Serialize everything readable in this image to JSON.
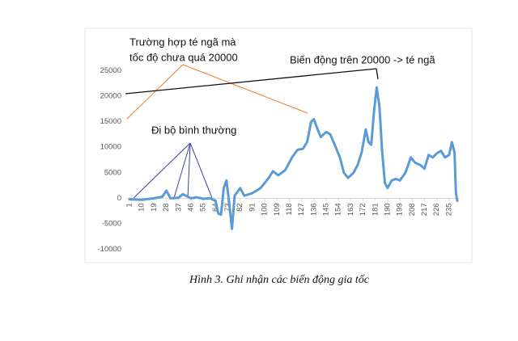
{
  "chart_data": {
    "type": "line",
    "annotations": [
      "Trường hợp té ngã mà",
      "tốc độ chưa quá 20000",
      "Biến động trên 20000 -> té ngã",
      "Đi bộ bình thường"
    ],
    "caption": "Hình 3. Ghi nhận các biến động gia tốc",
    "color": "#5b9bd5",
    "x": [
      1,
      10,
      19,
      25,
      28,
      31,
      37,
      40,
      46,
      50,
      55,
      60,
      64,
      66,
      68,
      70,
      72,
      74,
      76,
      78,
      82,
      85,
      91,
      97,
      103,
      106,
      110,
      115,
      120,
      124,
      128,
      131,
      134,
      136,
      138,
      141,
      145,
      148,
      152,
      155,
      158,
      161,
      165,
      168,
      171,
      174,
      176,
      178,
      180,
      182,
      184,
      186,
      188,
      190,
      193,
      196,
      199,
      203,
      207,
      210,
      214,
      217,
      220,
      223,
      226,
      229,
      232,
      235,
      237,
      239,
      240,
      241
    ],
    "values": [
      -200,
      -300,
      0,
      300,
      1500,
      0,
      100,
      800,
      0,
      200,
      -100,
      0,
      -500,
      -3000,
      -3200,
      2000,
      3500,
      -1000,
      -6000,
      500,
      2000,
      500,
      1000,
      2000,
      4000,
      5300,
      4500,
      5500,
      8000,
      9500,
      9700,
      11000,
      15000,
      15500,
      14000,
      12000,
      13000,
      12500,
      10000,
      8000,
      5000,
      4000,
      5000,
      6500,
      9000,
      13500,
      11000,
      10500,
      17000,
      21700,
      18000,
      9000,
      3000,
      2000,
      3500,
      3800,
      3500,
      5000,
      8000,
      7000,
      6500,
      5800,
      8500,
      8000,
      8800,
      9300,
      8000,
      8500,
      11000,
      9000,
      1000,
      -500
    ],
    "xlim": [
      1,
      241
    ],
    "xticks": [
      1,
      10,
      19,
      28,
      37,
      46,
      55,
      64,
      73,
      82,
      91,
      100,
      109,
      118,
      127,
      136,
      145,
      154,
      163,
      172,
      181,
      190,
      199,
      208,
      217,
      226,
      235
    ],
    "ylim": [
      -10000,
      25000
    ],
    "yticks": [
      -10000,
      -5000,
      0,
      5000,
      10000,
      15000,
      20000,
      25000
    ]
  }
}
